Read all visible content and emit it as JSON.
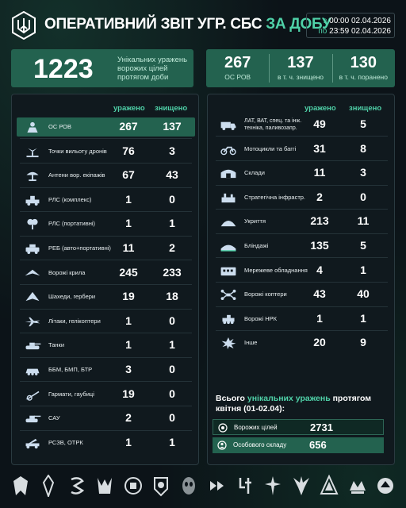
{
  "header": {
    "title_main": "ОПЕРАТИВНИЙ ЗВІТ УГР. СБС",
    "title_accent": "ЗА ДОБУ",
    "from_prefix": "з",
    "from_time": "00:00 02.04.2026",
    "to_prefix": "по",
    "to_time": "23:59 02.04.2026"
  },
  "summary": {
    "unique_hits": "1223",
    "unique_hits_desc": "Унікальних уражень ворожих цілей протягом доби",
    "personnel": [
      {
        "value": "267",
        "label": "ОС РОВ"
      },
      {
        "value": "137",
        "label": "в т. ч. знищено"
      },
      {
        "value": "130",
        "label": "в т. ч. поранено"
      }
    ]
  },
  "columns": {
    "hit": "уражено",
    "destroyed": "знищено"
  },
  "left_rows": [
    {
      "icon": "personnel-icon",
      "label": "ОС РОВ",
      "hit": "267",
      "destroyed": "137",
      "highlight": true
    },
    {
      "icon": "drone-launch-point-icon",
      "label": "Точки вильоту дронів",
      "hit": "76",
      "destroyed": "3"
    },
    {
      "icon": "antenna-icon",
      "label": "Антени вор. екіпажів",
      "hit": "67",
      "destroyed": "43"
    },
    {
      "icon": "radar-vehicle-icon",
      "label": "РЛС (комплекс)",
      "hit": "1",
      "destroyed": "0"
    },
    {
      "icon": "portable-radar-icon",
      "label": "РЛС (портативні)",
      "hit": "1",
      "destroyed": "1"
    },
    {
      "icon": "ew-icon",
      "label": "РЕБ (авто+портативні)",
      "hit": "11",
      "destroyed": "2"
    },
    {
      "icon": "wing-icon",
      "label": "Ворожі крила",
      "hit": "245",
      "destroyed": "233"
    },
    {
      "icon": "shahed-icon",
      "label": "Шахеди, гербери",
      "hit": "19",
      "destroyed": "18"
    },
    {
      "icon": "aircraft-icon",
      "label": "Літаки, гелікоптери",
      "hit": "1",
      "destroyed": "0"
    },
    {
      "icon": "tank-icon",
      "label": "Танки",
      "hit": "1",
      "destroyed": "1"
    },
    {
      "icon": "ifv-icon",
      "label": "ББМ, БМП, БТР",
      "hit": "3",
      "destroyed": "0"
    },
    {
      "icon": "artillery-icon",
      "label": "Гармати, гаубиці",
      "hit": "19",
      "destroyed": "0"
    },
    {
      "icon": "spg-icon",
      "label": "САУ",
      "hit": "2",
      "destroyed": "0"
    },
    {
      "icon": "mlrs-icon",
      "label": "РСЗВ, ОТРК",
      "hit": "1",
      "destroyed": "1"
    }
  ],
  "right_rows": [
    {
      "icon": "truck-icon",
      "label": "ЛАТ, ВАТ, спец. та інж. техніка, паливозапр.",
      "hit": "49",
      "destroyed": "5"
    },
    {
      "icon": "motorcycle-icon",
      "label": "Мотоцикли та баггі",
      "hit": "31",
      "destroyed": "8"
    },
    {
      "icon": "warehouse-icon",
      "label": "Склади",
      "hit": "11",
      "destroyed": "3"
    },
    {
      "icon": "infrastructure-icon",
      "label": "Стратегічна інфрастр.",
      "hit": "2",
      "destroyed": "0"
    },
    {
      "icon": "shelter-icon",
      "label": "Укриття",
      "hit": "213",
      "destroyed": "11"
    },
    {
      "icon": "dugout-icon",
      "label": "Бліндажі",
      "hit": "135",
      "destroyed": "5"
    },
    {
      "icon": "network-icon",
      "label": "Мережеве обладнання",
      "hit": "4",
      "destroyed": "1"
    },
    {
      "icon": "quadcopter-icon",
      "label": "Ворожі коптери",
      "hit": "43",
      "destroyed": "40"
    },
    {
      "icon": "ugv-icon",
      "label": "Ворожі НРК",
      "hit": "1",
      "destroyed": "1"
    },
    {
      "icon": "other-icon",
      "label": "Інше",
      "hit": "20",
      "destroyed": "9"
    }
  ],
  "totals": {
    "title_pre": "Всього",
    "title_accent": "унікальних уражень",
    "title_post": "протягом квітня (01-02.04):",
    "targets_label": "Ворожих цілей",
    "targets_value": "2731",
    "personnel_label": "Особового складу",
    "personnel_value": "656"
  },
  "footer_emblems": [
    "unit-emblem-1",
    "unit-emblem-2",
    "unit-emblem-3",
    "unit-emblem-4",
    "unit-emblem-5",
    "unit-emblem-6",
    "unit-emblem-7",
    "unit-emblem-8",
    "unit-emblem-9",
    "unit-emblem-10",
    "unit-emblem-11",
    "unit-emblem-12",
    "unit-emblem-13",
    "unit-emblem-14"
  ],
  "colors": {
    "accent": "#4fd1a8",
    "highlight": "#23624f",
    "panel": "#10191e",
    "background": "#0c1318"
  }
}
